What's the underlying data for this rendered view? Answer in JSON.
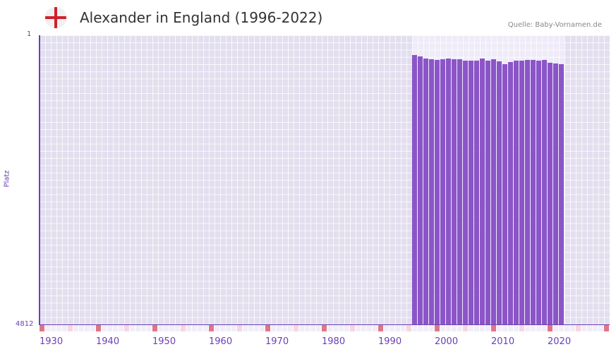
{
  "header": {
    "flag_icon": "england-flag-icon",
    "title": "Alexander in England (1996-2022)",
    "source": "Quelle: Baby-Vornamen.de"
  },
  "colors": {
    "bar": "#8b55c8",
    "axis": "#6c3fb5",
    "plot_bg": "#e3dfef",
    "range_bg": "#efebf8",
    "decade_marker": "#e27585",
    "half_decade_marker": "#f6d6e0"
  },
  "axes": {
    "y_top_label": "1",
    "y_bottom_label": "4812",
    "y_title": "Platz",
    "x_ticks": [
      "1930",
      "1940",
      "1950",
      "1960",
      "1970",
      "1980",
      "1990",
      "2000",
      "2010",
      "2020"
    ]
  },
  "chart_data": {
    "type": "bar",
    "title": "Alexander in England (1996-2022)",
    "xlabel": "",
    "ylabel": "Platz",
    "y_inverted": true,
    "ylim": [
      1,
      4812
    ],
    "xlim": [
      1930,
      2030
    ],
    "grid": true,
    "categories": [
      1996,
      1997,
      1998,
      1999,
      2000,
      2001,
      2002,
      2003,
      2004,
      2005,
      2006,
      2007,
      2008,
      2009,
      2010,
      2011,
      2012,
      2013,
      2014,
      2015,
      2016,
      2017,
      2018,
      2019,
      2020,
      2021,
      2022
    ],
    "values": [
      165,
      188,
      224,
      235,
      247,
      235,
      224,
      235,
      235,
      259,
      259,
      259,
      224,
      259,
      235,
      270,
      317,
      282,
      259,
      259,
      247,
      247,
      259,
      247,
      294,
      306,
      317
    ],
    "x_ticks": [
      1930,
      1940,
      1950,
      1960,
      1970,
      1980,
      1990,
      2000,
      2010,
      2020
    ],
    "annotations": [
      "Quelle: Baby-Vornamen.de"
    ]
  }
}
